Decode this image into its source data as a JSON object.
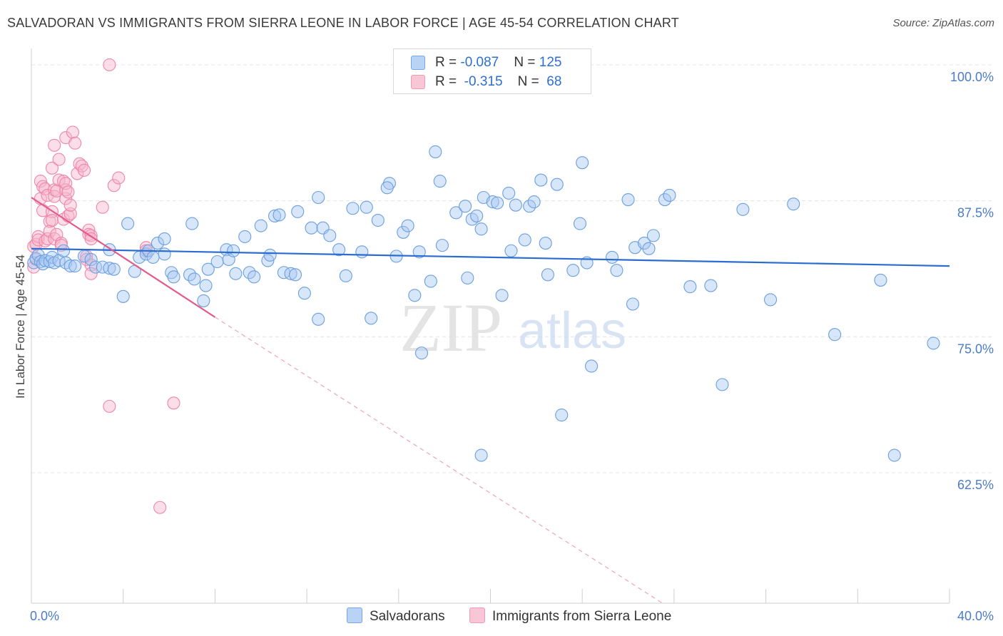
{
  "title": "SALVADORAN VS IMMIGRANTS FROM SIERRA LEONE IN LABOR FORCE | AGE 45-54 CORRELATION CHART",
  "source": "Source: ZipAtlas.com",
  "watermark": {
    "zip": "ZIP",
    "atlas": "atlas"
  },
  "legend": {
    "rows": [
      {
        "r_label": "R = ",
        "r_value": "-0.087",
        "n_label": "N = ",
        "n_value": "125"
      },
      {
        "r_label": "R = ",
        "r_value": " -0.315",
        "n_label": "N = ",
        "n_value": " 68"
      }
    ]
  },
  "bottom_legend": {
    "series1": "Salvadorans",
    "series2": "Immigrants from Sierra Leone"
  },
  "colors": {
    "blue_fill": "#a9c8f2",
    "blue_stroke": "#6a9fe0",
    "blue_line": "#2a6cd0",
    "pink_fill": "#f6b6cb",
    "pink_stroke": "#ee86a9",
    "pink_line": "#e45a8a",
    "axis_text": "#4a7cc9"
  },
  "chart_data": {
    "type": "scatter",
    "title": "SALVADORAN VS IMMIGRANTS FROM SIERRA LEONE IN LABOR FORCE | AGE 45-54 CORRELATION CHART",
    "xlabel": "",
    "ylabel": "In Labor Force | Age 45-54",
    "xlim": [
      0,
      40
    ],
    "ylim": [
      50.5,
      101.5
    ],
    "x_tick_labels": [
      "0.0%",
      "40.0%"
    ],
    "y_ticks": [
      62.5,
      75.0,
      87.5,
      100.0
    ],
    "y_tick_labels": [
      "62.5%",
      "75.0%",
      "87.5%",
      "100.0%"
    ],
    "grid": true,
    "legend_position": "top-center",
    "series": [
      {
        "name": "Salvadorans",
        "r": -0.087,
        "n": 125,
        "trend": {
          "x": [
            0.0,
            40.0
          ],
          "y": [
            83.1,
            81.5
          ]
        },
        "points": [
          [
            0.1,
            81.8
          ],
          [
            0.2,
            82.2
          ],
          [
            0.3,
            82.5
          ],
          [
            0.4,
            81.9
          ],
          [
            0.5,
            81.7
          ],
          [
            0.6,
            82.0
          ],
          [
            0.8,
            81.9
          ],
          [
            0.9,
            82.3
          ],
          [
            1.0,
            81.8
          ],
          [
            1.2,
            82.0
          ],
          [
            1.4,
            82.9
          ],
          [
            1.5,
            81.8
          ],
          [
            1.7,
            81.5
          ],
          [
            1.9,
            81.5
          ],
          [
            2.3,
            82.4
          ],
          [
            2.6,
            82.1
          ],
          [
            2.8,
            81.4
          ],
          [
            3.1,
            81.4
          ],
          [
            3.4,
            81.3
          ],
          [
            3.6,
            81.2
          ],
          [
            3.4,
            83.0
          ],
          [
            4.0,
            78.7
          ],
          [
            4.2,
            85.4
          ],
          [
            4.5,
            81.0
          ],
          [
            4.7,
            82.3
          ],
          [
            5.0,
            82.6
          ],
          [
            5.1,
            82.9
          ],
          [
            5.3,
            82.3
          ],
          [
            5.5,
            83.6
          ],
          [
            5.8,
            82.6
          ],
          [
            5.8,
            84.0
          ],
          [
            6.1,
            80.9
          ],
          [
            6.2,
            80.5
          ],
          [
            6.9,
            80.7
          ],
          [
            7.0,
            85.4
          ],
          [
            7.1,
            80.3
          ],
          [
            7.5,
            78.3
          ],
          [
            7.6,
            79.7
          ],
          [
            7.7,
            81.2
          ],
          [
            8.1,
            81.9
          ],
          [
            8.5,
            83.0
          ],
          [
            8.6,
            82.1
          ],
          [
            8.8,
            82.9
          ],
          [
            8.9,
            80.8
          ],
          [
            9.3,
            84.2
          ],
          [
            9.5,
            80.9
          ],
          [
            9.7,
            80.5
          ],
          [
            10.0,
            85.2
          ],
          [
            10.3,
            82.0
          ],
          [
            10.4,
            82.5
          ],
          [
            10.6,
            86.1
          ],
          [
            10.8,
            86.2
          ],
          [
            11.0,
            80.9
          ],
          [
            11.3,
            80.8
          ],
          [
            11.5,
            80.7
          ],
          [
            11.6,
            86.5
          ],
          [
            11.9,
            79.0
          ],
          [
            12.2,
            85.0
          ],
          [
            12.5,
            87.8
          ],
          [
            12.7,
            85.0
          ],
          [
            12.5,
            76.6
          ],
          [
            13.0,
            84.3
          ],
          [
            13.4,
            83.0
          ],
          [
            13.7,
            80.6
          ],
          [
            14.0,
            86.8
          ],
          [
            14.4,
            82.8
          ],
          [
            14.6,
            86.9
          ],
          [
            15.1,
            85.7
          ],
          [
            14.8,
            76.7
          ],
          [
            15.6,
            89.1
          ],
          [
            15.5,
            88.7
          ],
          [
            15.9,
            82.4
          ],
          [
            16.2,
            84.6
          ],
          [
            16.4,
            85.2
          ],
          [
            16.7,
            78.8
          ],
          [
            16.9,
            82.8
          ],
          [
            17.0,
            73.5
          ],
          [
            17.4,
            80.1
          ],
          [
            17.6,
            92.0
          ],
          [
            17.8,
            89.3
          ],
          [
            17.9,
            83.4
          ],
          [
            18.5,
            86.4
          ],
          [
            18.9,
            87.0
          ],
          [
            19.2,
            85.8
          ],
          [
            19.4,
            86.1
          ],
          [
            19.0,
            80.4
          ],
          [
            19.6,
            84.9
          ],
          [
            19.7,
            87.8
          ],
          [
            20.1,
            87.4
          ],
          [
            20.3,
            87.3
          ],
          [
            19.6,
            64.1
          ],
          [
            20.5,
            78.8
          ],
          [
            20.8,
            88.2
          ],
          [
            20.9,
            82.9
          ],
          [
            21.1,
            87.1
          ],
          [
            21.5,
            83.9
          ],
          [
            21.7,
            87.0
          ],
          [
            21.9,
            87.4
          ],
          [
            22.2,
            89.4
          ],
          [
            22.4,
            83.6
          ],
          [
            22.5,
            80.7
          ],
          [
            22.9,
            89.0
          ],
          [
            23.6,
            81.1
          ],
          [
            23.1,
            67.8
          ],
          [
            23.9,
            85.4
          ],
          [
            24.0,
            91.0
          ],
          [
            24.2,
            81.8
          ],
          [
            24.4,
            72.3
          ],
          [
            25.3,
            82.3
          ],
          [
            25.5,
            81.1
          ],
          [
            26.0,
            87.6
          ],
          [
            26.2,
            78.0
          ],
          [
            26.3,
            83.2
          ],
          [
            26.7,
            83.6
          ],
          [
            26.9,
            83.1
          ],
          [
            27.1,
            84.3
          ],
          [
            27.6,
            87.6
          ],
          [
            27.8,
            88.0
          ],
          [
            28.7,
            79.6
          ],
          [
            29.6,
            79.7
          ],
          [
            30.1,
            70.6
          ],
          [
            31.0,
            86.7
          ],
          [
            32.2,
            78.4
          ],
          [
            33.2,
            87.2
          ],
          [
            35.0,
            75.2
          ],
          [
            37.0,
            80.2
          ],
          [
            37.6,
            64.1
          ],
          [
            39.3,
            74.4
          ]
        ]
      },
      {
        "name": "Immigrants from Sierra Leone",
        "r": -0.315,
        "n": 68,
        "trend": {
          "x": [
            0.0,
            8.0
          ],
          "y": [
            87.8,
            76.8
          ]
        },
        "trend_dashed": {
          "x": [
            8.0,
            27.5
          ],
          "y": [
            76.8,
            50.5
          ]
        },
        "points": [
          [
            0.1,
            81.4
          ],
          [
            0.1,
            83.3
          ],
          [
            0.2,
            82.1
          ],
          [
            0.2,
            83.5
          ],
          [
            0.3,
            84.2
          ],
          [
            0.3,
            83.9
          ],
          [
            0.4,
            89.3
          ],
          [
            0.4,
            87.7
          ],
          [
            0.5,
            88.8
          ],
          [
            0.5,
            86.6
          ],
          [
            0.6,
            88.6
          ],
          [
            0.6,
            83.8
          ],
          [
            0.7,
            84.0
          ],
          [
            0.7,
            88.0
          ],
          [
            0.8,
            85.6
          ],
          [
            0.8,
            84.7
          ],
          [
            0.9,
            90.5
          ],
          [
            0.9,
            86.5
          ],
          [
            0.9,
            85.7
          ],
          [
            1.0,
            92.6
          ],
          [
            1.0,
            88.5
          ],
          [
            1.0,
            87.9
          ],
          [
            1.0,
            84.0
          ],
          [
            1.1,
            88.4
          ],
          [
            1.1,
            84.4
          ],
          [
            1.2,
            89.4
          ],
          [
            1.2,
            91.3
          ],
          [
            1.3,
            83.6
          ],
          [
            1.3,
            83.4
          ],
          [
            1.4,
            89.3
          ],
          [
            1.4,
            85.8
          ],
          [
            1.5,
            93.3
          ],
          [
            1.5,
            87.7
          ],
          [
            1.5,
            88.5
          ],
          [
            1.5,
            89.1
          ],
          [
            1.6,
            86.1
          ],
          [
            1.6,
            88.3
          ],
          [
            1.7,
            86.3
          ],
          [
            1.7,
            87.1
          ],
          [
            1.8,
            93.8
          ],
          [
            1.9,
            92.8
          ],
          [
            2.0,
            90.0
          ],
          [
            2.1,
            90.9
          ],
          [
            2.2,
            90.7
          ],
          [
            2.3,
            90.3
          ],
          [
            2.4,
            82.4
          ],
          [
            2.4,
            82.1
          ],
          [
            2.5,
            84.8
          ],
          [
            2.5,
            84.4
          ],
          [
            2.6,
            84.3
          ],
          [
            2.6,
            81.6
          ],
          [
            2.6,
            80.8
          ],
          [
            2.6,
            84.0
          ],
          [
            3.1,
            86.9
          ],
          [
            3.4,
            100.0
          ],
          [
            3.4,
            68.6
          ],
          [
            3.6,
            88.9
          ],
          [
            3.8,
            89.6
          ],
          [
            5.0,
            83.2
          ],
          [
            5.0,
            82.9
          ],
          [
            5.6,
            59.3
          ],
          [
            6.2,
            68.9
          ]
        ]
      }
    ]
  }
}
